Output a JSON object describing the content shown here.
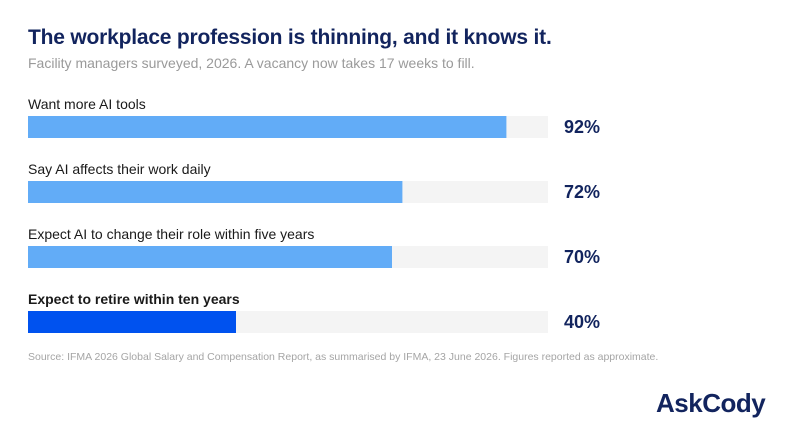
{
  "header": {
    "title": "The workplace profession is thinning, and it knows it.",
    "subtitle": "Facility managers surveyed, 2026. A vacancy now takes 17 weeks to fill."
  },
  "chart_data": {
    "type": "bar",
    "orientation": "horizontal",
    "categories": [
      "Want more AI tools",
      "Say AI affects their work daily",
      "Expect AI to change their role within five years",
      "Expect to retire within ten years"
    ],
    "values": [
      92,
      72,
      70,
      40
    ],
    "value_labels": [
      "92%",
      "72%",
      "70%",
      "40%"
    ],
    "unit": "%",
    "xlim": [
      0,
      100
    ],
    "highlighted_index": 3,
    "colors": {
      "bar": "#62acf7",
      "highlight": "#0052ef",
      "track": "#f4f4f4",
      "label": "#1a1a1a",
      "value": "#12245e"
    },
    "grid": false,
    "legend": "none"
  },
  "footer": {
    "source": "Source: IFMA 2026 Global Salary and Compensation Report, as summarised by IFMA, 23 June 2026. Figures reported as approximate.",
    "logo": "AskCody"
  }
}
